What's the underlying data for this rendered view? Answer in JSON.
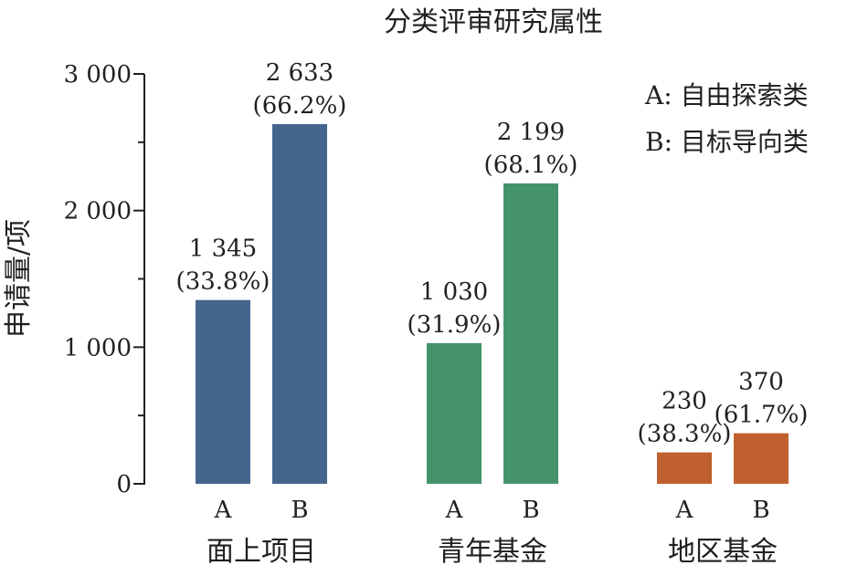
{
  "chart_data": {
    "type": "bar",
    "title": "分类评审研究属性",
    "ylabel": "申请量/项",
    "ylim": [
      0,
      3000
    ],
    "yticks": [
      0,
      1000,
      2000,
      3000
    ],
    "ytick_labels": [
      "0",
      "1 000",
      "2 000",
      "3 000"
    ],
    "groups": [
      {
        "name": "面上项目",
        "color": "#44668e",
        "bars": [
          {
            "category": "A",
            "value": 1345,
            "value_label": "1 345",
            "pct_label": "(33.8%)"
          },
          {
            "category": "B",
            "value": 2633,
            "value_label": "2 633",
            "pct_label": "(66.2%)"
          }
        ]
      },
      {
        "name": "青年基金",
        "color": "#45936b",
        "bars": [
          {
            "category": "A",
            "value": 1030,
            "value_label": "1 030",
            "pct_label": "(31.9%)"
          },
          {
            "category": "B",
            "value": 2199,
            "value_label": "2 199",
            "pct_label": "(68.1%)"
          }
        ]
      },
      {
        "name": "地区基金",
        "color": "#c0602e",
        "bars": [
          {
            "category": "A",
            "value": 230,
            "value_label": "230",
            "pct_label": "(38.3%)"
          },
          {
            "category": "B",
            "value": 370,
            "value_label": "370",
            "pct_label": "(61.7%)"
          }
        ]
      }
    ],
    "legend": {
      "position": "top-right",
      "entries": [
        "A: 自由探索类",
        "B: 目标导向类"
      ]
    },
    "grid": false
  }
}
